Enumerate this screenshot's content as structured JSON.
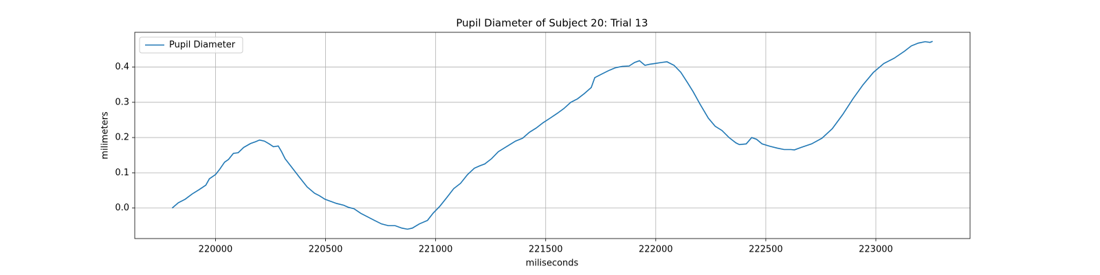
{
  "chart_data": {
    "type": "line",
    "title": "Pupil Diameter of Subject 20: Trial 13",
    "xlabel": "miliseconds",
    "ylabel": "milimeters",
    "x": [
      219803,
      219831,
      219862,
      219894,
      219925,
      219956,
      219972,
      220000,
      220019,
      220041,
      220059,
      220081,
      220103,
      220128,
      220159,
      220181,
      220200,
      220222,
      220244,
      220263,
      220285,
      220300,
      220316,
      220347,
      220378,
      220416,
      220450,
      220472,
      220497,
      220519,
      220550,
      220582,
      220604,
      220629,
      220660,
      220691,
      220722,
      220754,
      220785,
      220816,
      220847,
      220872,
      220894,
      220926,
      220963,
      220988,
      221019,
      221051,
      221082,
      221113,
      221145,
      221176,
      221201,
      221223,
      221254,
      221285,
      221332,
      221363,
      221395,
      221426,
      221457,
      221488,
      221520,
      221551,
      221582,
      221614,
      221645,
      221676,
      221707,
      221723,
      221754,
      221786,
      221817,
      221848,
      221879,
      221904,
      221926,
      221951,
      221973,
      221995,
      222026,
      222051,
      222083,
      222114,
      222145,
      222170,
      222201,
      222239,
      222270,
      222301,
      222333,
      222364,
      222380,
      222411,
      222436,
      222458,
      222483,
      222520,
      222552,
      222583,
      222614,
      222630,
      222661,
      222708,
      222755,
      222802,
      222849,
      222896,
      222942,
      222989,
      223036,
      223083,
      223130,
      223161,
      223193,
      223224,
      223246,
      223258
    ],
    "series": [
      {
        "name": "Pupil Diameter",
        "color": "#1f77b4",
        "values": [
          0.0,
          0.015,
          0.025,
          0.04,
          0.052,
          0.065,
          0.083,
          0.095,
          0.11,
          0.13,
          0.138,
          0.155,
          0.157,
          0.172,
          0.183,
          0.188,
          0.193,
          0.19,
          0.182,
          0.174,
          0.176,
          0.16,
          0.14,
          0.115,
          0.09,
          0.06,
          0.042,
          0.035,
          0.025,
          0.02,
          0.013,
          0.008,
          0.002,
          -0.002,
          -0.015,
          -0.025,
          -0.035,
          -0.045,
          -0.05,
          -0.05,
          -0.057,
          -0.06,
          -0.057,
          -0.045,
          -0.035,
          -0.015,
          0.005,
          0.03,
          0.055,
          0.07,
          0.095,
          0.113,
          0.12,
          0.125,
          0.14,
          0.16,
          0.178,
          0.19,
          0.198,
          0.215,
          0.227,
          0.242,
          0.255,
          0.268,
          0.282,
          0.3,
          0.31,
          0.325,
          0.342,
          0.37,
          0.38,
          0.39,
          0.398,
          0.402,
          0.403,
          0.413,
          0.418,
          0.405,
          0.408,
          0.41,
          0.413,
          0.415,
          0.405,
          0.385,
          0.355,
          0.33,
          0.295,
          0.255,
          0.232,
          0.22,
          0.2,
          0.185,
          0.18,
          0.182,
          0.2,
          0.195,
          0.182,
          0.175,
          0.17,
          0.166,
          0.166,
          0.165,
          0.172,
          0.182,
          0.198,
          0.225,
          0.265,
          0.31,
          0.35,
          0.385,
          0.41,
          0.425,
          0.445,
          0.46,
          0.468,
          0.472,
          0.47,
          0.473
        ]
      }
    ],
    "xlim": [
      219633,
      223428
    ],
    "ylim": [
      -0.0866,
      0.4986
    ],
    "xticks": [
      220000,
      220500,
      221000,
      221500,
      222000,
      222500,
      223000
    ],
    "yticks": [
      {
        "value": 0,
        "label": "0.0"
      },
      0.1,
      0.2,
      0.3,
      0.4
    ],
    "grid": true,
    "legend": "upper left"
  }
}
